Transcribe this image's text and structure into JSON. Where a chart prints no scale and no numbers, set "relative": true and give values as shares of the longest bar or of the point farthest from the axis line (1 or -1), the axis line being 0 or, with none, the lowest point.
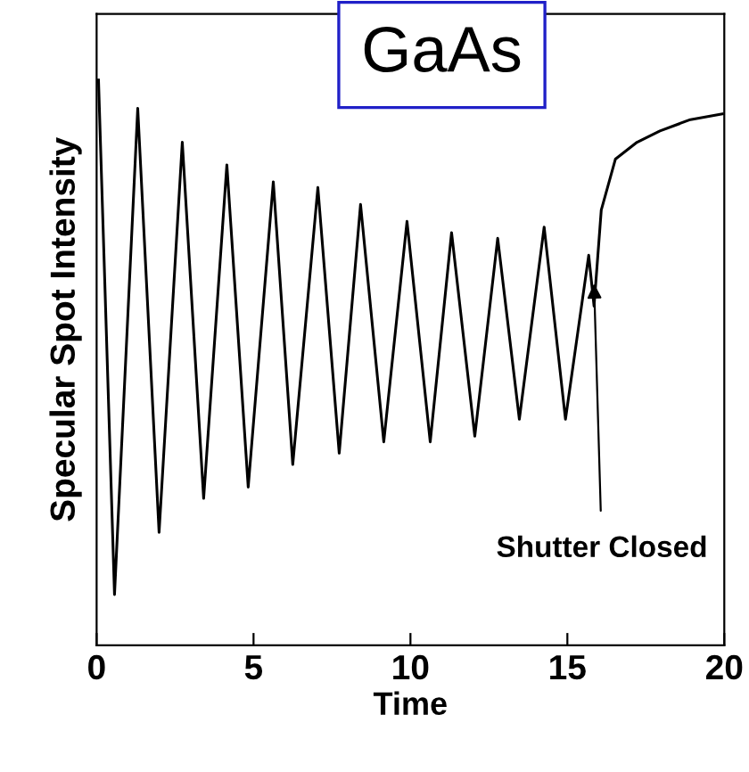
{
  "chart_data": {
    "type": "line",
    "xlabel": "Time",
    "ylabel": "Specular Spot Intensity",
    "relative": true,
    "xlim": [
      0,
      20
    ],
    "xticks": [
      0,
      5,
      10,
      15,
      20
    ],
    "tick_labels": "x",
    "grid": false,
    "marker": "none",
    "line_style": "solid",
    "annotations": [
      "GaAs",
      {
        "text": "Shutter Closed",
        "x": 15.85,
        "y": 0.64
      }
    ],
    "series": [
      {
        "color": "#000000",
        "x": [
          0.06,
          0.57,
          1.31,
          1.99,
          2.73,
          3.41,
          4.15,
          4.83,
          5.63,
          6.25,
          7.05,
          7.73,
          8.41,
          9.15,
          9.89,
          10.63,
          11.31,
          12.05,
          12.78,
          13.47,
          14.26,
          14.94,
          15.68,
          15.85,
          16.08,
          16.53,
          17.22,
          17.95,
          18.92,
          19.94
        ],
        "values": [
          1.0,
          0.09,
          0.95,
          0.2,
          0.89,
          0.26,
          0.85,
          0.28,
          0.82,
          0.32,
          0.81,
          0.34,
          0.78,
          0.36,
          0.75,
          0.36,
          0.73,
          0.37,
          0.72,
          0.4,
          0.74,
          0.4,
          0.69,
          0.6,
          0.77,
          0.86,
          0.89,
          0.91,
          0.93,
          0.94
        ]
      }
    ]
  }
}
